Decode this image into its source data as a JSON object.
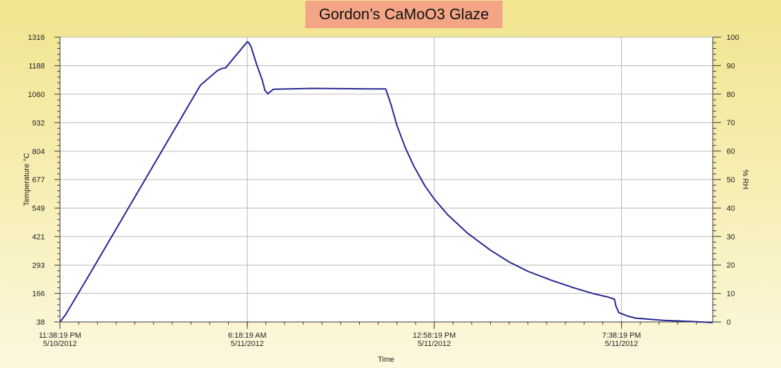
{
  "chart_data": {
    "type": "line",
    "title": "Gordon’s CaMoO3 Glaze",
    "xlabel": "Time",
    "ylabel": "Temperature °C",
    "y2label": "% RH",
    "ylim": [
      38,
      1316
    ],
    "y2lim": [
      0,
      100
    ],
    "yticks": [
      38,
      166,
      293,
      421,
      549,
      677,
      804,
      932,
      1060,
      1188,
      1316
    ],
    "y2ticks": [
      0,
      10,
      20,
      30,
      40,
      50,
      60,
      70,
      80,
      90,
      100
    ],
    "xlim_hours": [
      0,
      23.25
    ],
    "xticks": [
      {
        "h": 0,
        "time": "11:38:19 PM",
        "date": "5/10/2012"
      },
      {
        "h": 6.67,
        "time": "6:18:19 AM",
        "date": "5/11/2012"
      },
      {
        "h": 13.33,
        "time": "12:58:19 PM",
        "date": "5/11/2012"
      },
      {
        "h": 20,
        "time": "7:38:19 PM",
        "date": "5/11/2012"
      }
    ],
    "grid": true,
    "legend": "none",
    "line_color": "#23238e",
    "series": [
      {
        "x_hours": [
          0,
          0.2,
          1,
          2,
          3,
          4,
          5,
          5.6,
          5.75,
          5.9,
          6.67,
          6.72,
          6.8,
          7.0,
          7.2,
          7.3,
          7.4,
          7.6,
          9,
          11,
          11.5,
          11.6,
          11.8,
          12.0,
          12.3,
          12.6,
          13.0,
          13.33,
          13.8,
          14.5,
          15.33,
          16.0,
          16.67,
          17.5,
          18.33,
          19.0,
          19.5,
          19.75,
          19.8,
          19.9,
          20.2,
          20.5,
          21.5,
          22.5,
          23.25
        ],
        "y": [
          38,
          70,
          240,
          455,
          670,
          885,
          1100,
          1165,
          1175,
          1178,
          1295,
          1292,
          1275,
          1195,
          1125,
          1078,
          1062,
          1082,
          1086,
          1084,
          1084,
          1084,
          1010,
          920,
          820,
          738,
          648,
          590,
          520,
          438,
          360,
          307,
          265,
          225,
          190,
          165,
          150,
          140,
          110,
          80,
          65,
          55,
          45,
          40,
          35
        ]
      }
    ]
  }
}
